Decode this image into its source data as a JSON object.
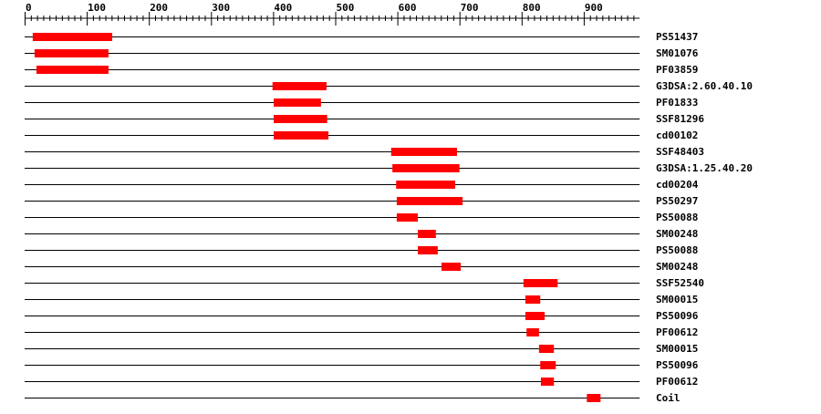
{
  "chart_data": {
    "type": "bar",
    "subtype": "domain-track",
    "xlim": [
      0,
      990
    ],
    "x_ticks": [
      0,
      100,
      200,
      300,
      400,
      500,
      600,
      700,
      800,
      900
    ],
    "minor_tick_step": 10,
    "bar_color": "#ff0000",
    "line_color": "#000000",
    "grid": false,
    "tracks": [
      {
        "label": "PS51437",
        "start": 13,
        "end": 141
      },
      {
        "label": "SM01076",
        "start": 16,
        "end": 135
      },
      {
        "label": "PF03859",
        "start": 19,
        "end": 135
      },
      {
        "label": "G3DSA:2.60.40.10",
        "start": 399,
        "end": 486
      },
      {
        "label": "PF01833",
        "start": 401,
        "end": 477
      },
      {
        "label": "SSF81296",
        "start": 401,
        "end": 487
      },
      {
        "label": "cd00102",
        "start": 401,
        "end": 489
      },
      {
        "label": "SSF48403",
        "start": 590,
        "end": 696
      },
      {
        "label": "G3DSA:1.25.40.20",
        "start": 592,
        "end": 700
      },
      {
        "label": "cd00204",
        "start": 598,
        "end": 693
      },
      {
        "label": "PS50297",
        "start": 599,
        "end": 705
      },
      {
        "label": "PS50088",
        "start": 599,
        "end": 633
      },
      {
        "label": "SM00248",
        "start": 633,
        "end": 662
      },
      {
        "label": "PS50088",
        "start": 633,
        "end": 665
      },
      {
        "label": "SM00248",
        "start": 671,
        "end": 702
      },
      {
        "label": "SSF52540",
        "start": 803,
        "end": 858
      },
      {
        "label": "SM00015",
        "start": 806,
        "end": 830
      },
      {
        "label": "PS50096",
        "start": 806,
        "end": 837
      },
      {
        "label": "PF00612",
        "start": 808,
        "end": 828
      },
      {
        "label": "SM00015",
        "start": 828,
        "end": 852
      },
      {
        "label": "PS50096",
        "start": 830,
        "end": 855
      },
      {
        "label": "PF00612",
        "start": 831,
        "end": 852
      },
      {
        "label": "Coil",
        "start": 905,
        "end": 927
      }
    ]
  }
}
